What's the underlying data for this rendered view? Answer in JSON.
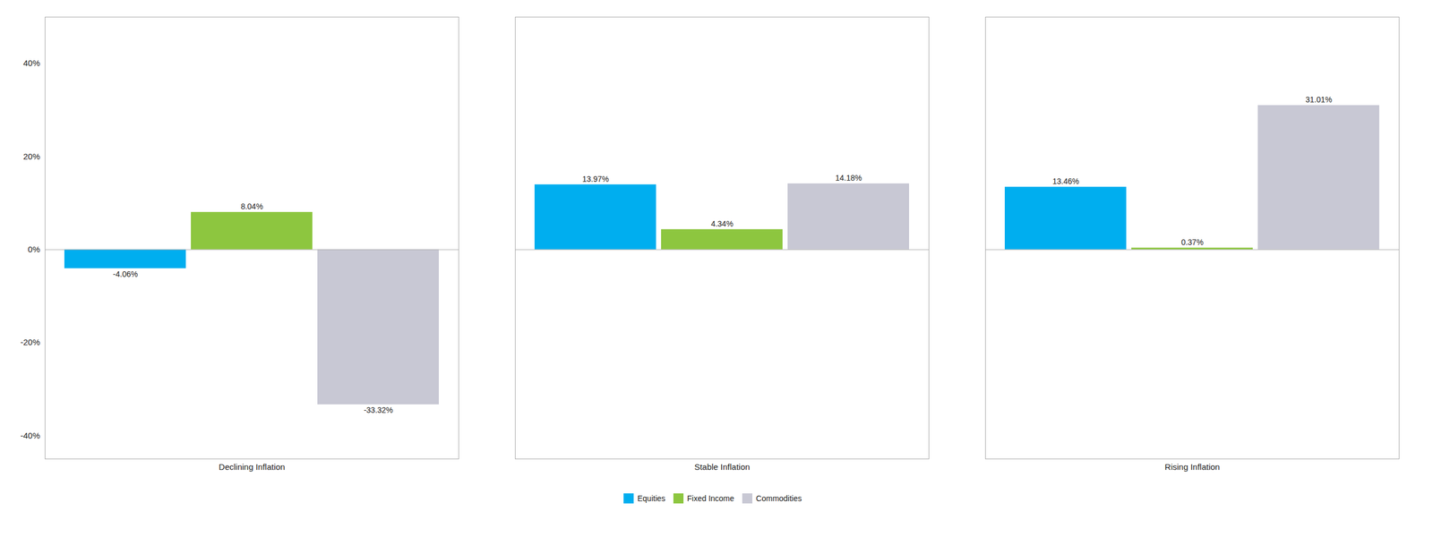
{
  "chart_data": {
    "type": "bar",
    "categories": [
      "Declining Inflation",
      "Stable Inflation",
      "Rising Inflation"
    ],
    "series": [
      {
        "name": "Equities",
        "color": "#00AEEF",
        "values": [
          -4.06,
          13.97,
          13.46
        ],
        "value_labels": [
          "-4.06%",
          "13.97%",
          "13.46%"
        ]
      },
      {
        "name": "Fixed Income",
        "color": "#8DC63F",
        "values": [
          8.04,
          4.34,
          0.37
        ],
        "value_labels": [
          "8.04%",
          "4.34%",
          "0.37%"
        ]
      },
      {
        "name": "Commodities",
        "color": "#C8C8D4",
        "values": [
          -33.32,
          14.18,
          31.01
        ],
        "value_labels": [
          "-33.32%",
          "14.18%",
          "31.01%"
        ]
      }
    ],
    "ylim": [
      -45,
      50
    ],
    "yticks": [
      {
        "value": -40,
        "label": "-40%"
      },
      {
        "value": -20,
        "label": "-20%"
      },
      {
        "value": 0,
        "label": "0%"
      },
      {
        "value": 20,
        "label": "20%"
      },
      {
        "value": 40,
        "label": "40%"
      }
    ],
    "grid": false,
    "legend": "bottom",
    "data_labels": true
  }
}
